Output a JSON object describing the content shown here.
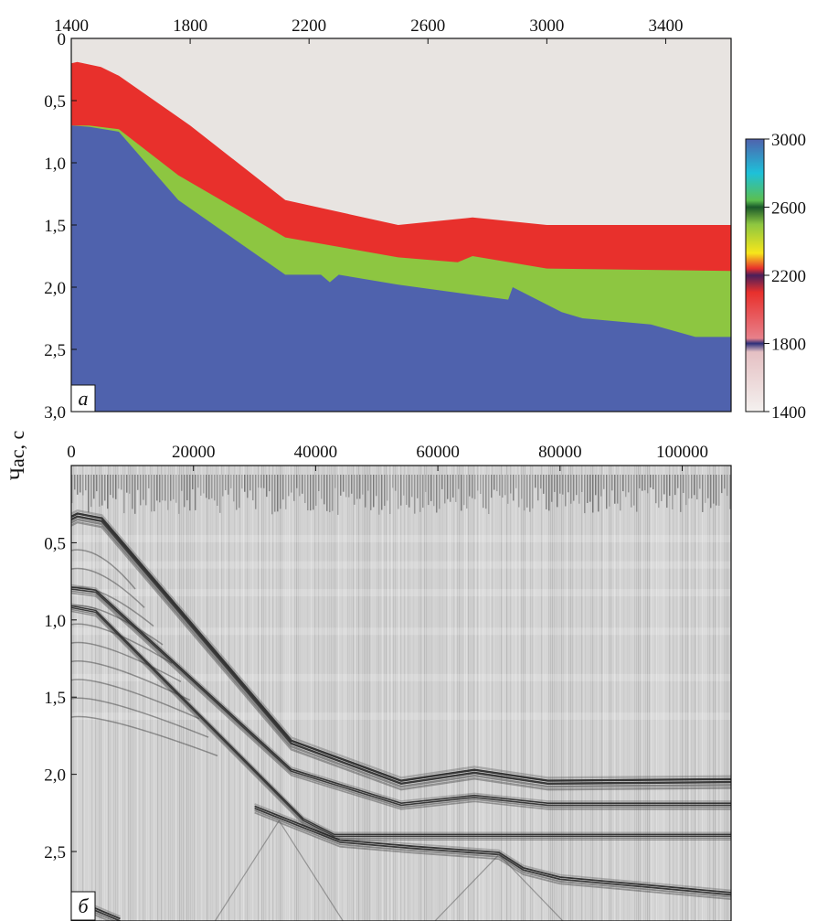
{
  "figure": {
    "ylabel": "Час, с"
  },
  "chart_data": [
    {
      "id": "a",
      "type": "area",
      "panel_label": "а",
      "x_ticks": [
        1400,
        1800,
        2200,
        2600,
        3000,
        3400
      ],
      "xlim": [
        1400,
        3620
      ],
      "ylim": [
        0,
        3.0
      ],
      "y_ticks": [
        "0",
        "0,5",
        "1,0",
        "1,5",
        "2,0",
        "2,5",
        "3,0"
      ],
      "y_tick_values": [
        0,
        0.5,
        1.0,
        1.5,
        2.0,
        2.5,
        3.0
      ],
      "y_inverted": true,
      "background_color": "#e8e4e1",
      "layers": [
        {
          "color": "#e8302c",
          "x": [
            1400,
            1420,
            1500,
            1560,
            1800,
            2120,
            2500,
            2750,
            3000,
            3620
          ],
          "y": [
            0.2,
            0.19,
            0.23,
            0.3,
            0.7,
            1.3,
            1.5,
            1.44,
            1.5,
            1.5
          ]
        },
        {
          "color": "#8dc641",
          "x": [
            1400,
            1460,
            1560,
            1760,
            2120,
            2500,
            2700,
            2750,
            3000,
            3620
          ],
          "y": [
            0.7,
            0.7,
            0.73,
            1.1,
            1.6,
            1.76,
            1.8,
            1.75,
            1.85,
            1.87
          ]
        },
        {
          "color": "#4f62ad",
          "x": [
            1400,
            1460,
            1560,
            1760,
            2120,
            2240,
            2270,
            2300,
            2500,
            2870,
            2885,
            3050,
            3120,
            3350,
            3500,
            3620
          ],
          "y": [
            0.7,
            0.71,
            0.75,
            1.3,
            1.9,
            1.9,
            1.96,
            1.9,
            1.98,
            2.1,
            2.0,
            2.2,
            2.25,
            2.3,
            2.4,
            2.4
          ]
        }
      ],
      "colorbar": {
        "ticks": [
          3000,
          2600,
          2200,
          1800,
          1400
        ],
        "range": [
          1400,
          3000
        ],
        "stops": [
          {
            "value": 1400,
            "color": "#f4f1ef"
          },
          {
            "value": 1750,
            "color": "#e5c0c3"
          },
          {
            "value": 1800,
            "color": "#2c2f7a"
          },
          {
            "value": 1830,
            "color": "#e8808a"
          },
          {
            "value": 2100,
            "color": "#e8302c"
          },
          {
            "value": 2200,
            "color": "#4a1f5a"
          },
          {
            "value": 2240,
            "color": "#e8302c"
          },
          {
            "value": 2330,
            "color": "#f7e61b"
          },
          {
            "value": 2500,
            "color": "#8dc641"
          },
          {
            "value": 2600,
            "color": "#1a5a2a"
          },
          {
            "value": 2640,
            "color": "#5bbf50"
          },
          {
            "value": 2800,
            "color": "#1ec1d9"
          },
          {
            "value": 3000,
            "color": "#4f62ad"
          }
        ]
      }
    },
    {
      "id": "b",
      "type": "seismic-section",
      "panel_label": "б",
      "x_ticks": [
        0,
        20000,
        40000,
        60000,
        80000,
        100000
      ],
      "xlim": [
        0,
        108000
      ],
      "ylim": [
        0.0,
        2.95
      ],
      "y_ticks": [
        "0,5",
        "1,0",
        "1,5",
        "2,0",
        "2,5"
      ],
      "y_tick_values": [
        0.5,
        1.0,
        1.5,
        2.0,
        2.5
      ],
      "y_inverted": true,
      "horizons": [
        {
          "x": [
            0,
            1000,
            5000,
            36000,
            54000,
            66000,
            78000,
            108000
          ],
          "y": [
            0.35,
            0.33,
            0.36,
            1.8,
            2.06,
            1.99,
            2.06,
            2.05
          ],
          "strength": 3.2
        },
        {
          "x": [
            0,
            4000,
            36000,
            54000,
            66000,
            78000,
            108000
          ],
          "y": [
            0.8,
            0.82,
            1.98,
            2.2,
            2.15,
            2.2,
            2.2
          ],
          "strength": 2.2
        },
        {
          "x": [
            0,
            4000,
            38000,
            43000,
            54000,
            108000
          ],
          "y": [
            0.92,
            0.95,
            2.3,
            2.4,
            2.4,
            2.4
          ],
          "strength": 2.0
        },
        {
          "x": [
            30000,
            44000,
            56000,
            70000,
            74000,
            80000,
            108000
          ],
          "y": [
            2.22,
            2.44,
            2.48,
            2.52,
            2.62,
            2.68,
            2.78
          ],
          "strength": 2.4
        },
        {
          "x": [
            0,
            2000,
            8000
          ],
          "y": [
            2.82,
            2.85,
            2.95
          ],
          "strength": 2.5
        }
      ]
    }
  ]
}
